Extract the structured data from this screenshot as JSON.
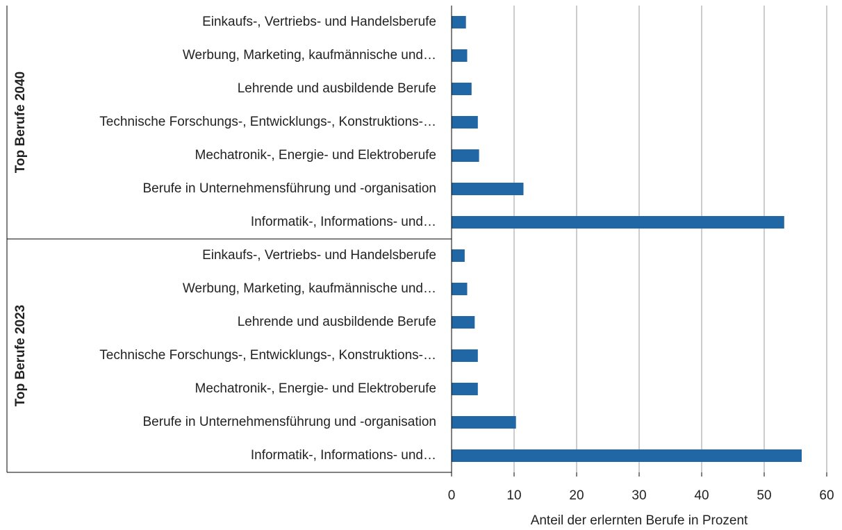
{
  "chart_data": {
    "type": "bar",
    "orientation": "horizontal",
    "color": "#2166a5",
    "x_label": "Anteil der erlernten Berufe in Prozent",
    "xlim": [
      0,
      60
    ],
    "xticks": [
      0,
      10,
      20,
      30,
      40,
      50,
      60
    ],
    "grid": true,
    "groups": [
      {
        "label": "Top Berufe 2040",
        "categories": [
          "Einkaufs-, Vertriebs- und Handelsberufe",
          "Werbung, Marketing, kaufmännische und…",
          "Lehrende und ausbildende Berufe",
          "Technische Forschungs-, Entwicklungs-, Konstruktions-…",
          "Mechatronik-, Energie- und Elektroberufe",
          "Berufe in Unternehmensführung und -organisation",
          "Informatik-, Informations- und…"
        ],
        "values": [
          2.3,
          2.5,
          3.2,
          4.2,
          4.4,
          11.5,
          53.2
        ]
      },
      {
        "label": "Top Berufe 2023",
        "categories": [
          "Einkaufs-, Vertriebs- und Handelsberufe",
          "Werbung, Marketing, kaufmännische und…",
          "Lehrende und ausbildende Berufe",
          "Technische Forschungs-, Entwicklungs-, Konstruktions-…",
          "Mechatronik-, Energie- und Elektroberufe",
          "Berufe in Unternehmensführung und -organisation",
          "Informatik-, Informations- und…"
        ],
        "values": [
          2.1,
          2.5,
          3.7,
          4.2,
          4.2,
          10.3,
          56.0
        ]
      }
    ]
  }
}
